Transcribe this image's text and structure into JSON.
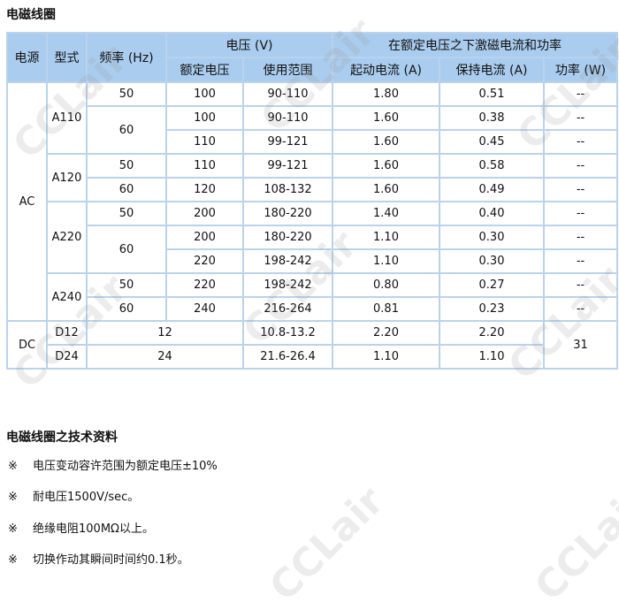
{
  "title": "电磁线圈",
  "table": {
    "headers": {
      "power_source": "电源",
      "model": "型式",
      "frequency": "频率 (Hz)",
      "voltage": "电压 (V)",
      "rated_voltage": "额定电压",
      "usage_range": "使用范围",
      "current_power": "在额定电压之下激磁电流和功率",
      "starting_current": "起动电流 (A)",
      "holding_current": "保持电流 (A)",
      "power": "功率 (W)"
    },
    "rows": [
      [
        "AC",
        "A110",
        "50",
        "100",
        "90-110",
        "1.80",
        "0.51",
        "--"
      ],
      [
        "60",
        "100",
        "90-110",
        "1.60",
        "0.38",
        "--"
      ],
      [
        "110",
        "99-121",
        "1.60",
        "0.45",
        "--"
      ],
      [
        "A120",
        "50",
        "110",
        "99-121",
        "1.60",
        "0.58",
        "--"
      ],
      [
        "60",
        "120",
        "108-132",
        "1.60",
        "0.49",
        "--"
      ],
      [
        "A220",
        "50",
        "200",
        "180-220",
        "1.40",
        "0.40",
        "--"
      ],
      [
        "60",
        "200",
        "180-220",
        "1.10",
        "0.30",
        "--"
      ],
      [
        "220",
        "198-242",
        "1.10",
        "0.30",
        "--"
      ],
      [
        "A240",
        "50",
        "220",
        "198-242",
        "0.80",
        "0.27",
        "--"
      ],
      [
        "60",
        "240",
        "216-264",
        "0.81",
        "0.23",
        "--"
      ],
      [
        "DC",
        "D12",
        "12",
        "10.8-13.2",
        "2.20",
        "2.20",
        "31"
      ],
      [
        "D24",
        "24",
        "21.6-26.4",
        "1.10",
        "1.10"
      ]
    ]
  },
  "tech_title": "电磁线圈之技术资料",
  "notes": [
    {
      "mark": "※",
      "text": "电压变动容许范围为额定电压±10%"
    },
    {
      "mark": "※",
      "text": "耐电压1500V/sec。"
    },
    {
      "mark": "※",
      "text": "绝缘电阻100MΩ以上。"
    },
    {
      "mark": "※",
      "text": "切换作动其瞬间时间约0.1秒。"
    }
  ],
  "watermark": "CCLair"
}
